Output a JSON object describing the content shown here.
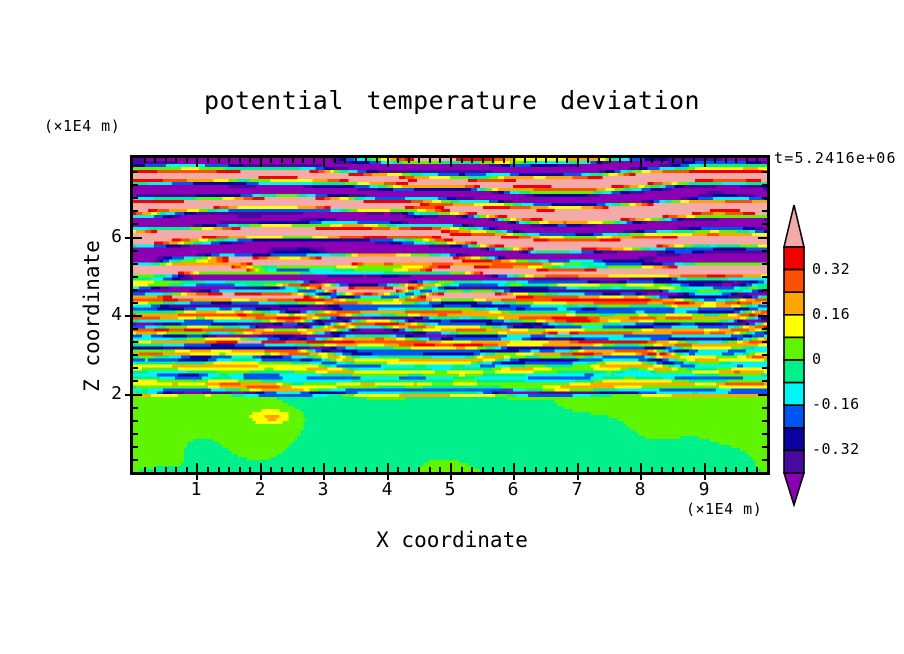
{
  "chart": {
    "title": "potential temperature deviation",
    "timestamp": "t=5.2416e+06"
  },
  "axes": {
    "x": {
      "title": "X coordinate",
      "unit": "(×1E4 m)",
      "min": 0,
      "max": 10,
      "major_ticks": [
        1,
        2,
        3,
        4,
        5,
        6,
        7,
        8,
        9
      ],
      "minor_divisions_per_unit": 6
    },
    "z": {
      "title": "Z coordinate",
      "unit": "(×1E4 m)",
      "min": 0,
      "max": 8,
      "major_ticks": [
        2,
        4,
        6
      ],
      "minor_step": 0.3333
    }
  },
  "colorbar": {
    "min": -0.4,
    "max": 0.4,
    "step": 0.08,
    "tick_labels": [
      {
        "value": 0.32,
        "text": "0.32"
      },
      {
        "value": 0.16,
        "text": "0.16"
      },
      {
        "value": 0,
        "text": "0"
      },
      {
        "value": -0.16,
        "text": "-0.16"
      },
      {
        "value": -0.32,
        "text": "-0.32"
      }
    ],
    "colors_high_to_low": [
      "#F50000",
      "#FF5000",
      "#FFA500",
      "#FFFF00",
      "#5FF500",
      "#00F08C",
      "#00F5F5",
      "#0055F0",
      "#0D00A0",
      "#4B08A0"
    ],
    "over_color": "#F5AAAA",
    "under_color": "#8C00B4"
  },
  "chart_data": {
    "type": "filled_contour",
    "title": "potential temperature deviation",
    "xlabel": "X coordinate (×1E4 m)",
    "ylabel": "Z coordinate (×1E4 m)",
    "time_label": "t=5.2416e+06",
    "x_range": [
      0,
      10
    ],
    "z_range": [
      0,
      8
    ],
    "contour_interval": 0.08,
    "levels": [
      -0.4,
      -0.32,
      -0.24,
      -0.16,
      -0.08,
      0,
      0.08,
      0.16,
      0.24,
      0.32,
      0.4
    ],
    "saturation_colors": {
      "above_0.4": "#F5AAAA",
      "below_-0.4": "#8C00B4"
    },
    "field_structure": [
      {
        "z_range": [
          0,
          1.9
        ],
        "description": "smooth weak anomalies near zero; broad interlocking blobs alternating between -0.08..0 and 0..0.08",
        "dominant_colors": [
          "#00F08C",
          "#5FF500"
        ],
        "feature": "small warm spot (~+0.2, yellow/orange) near x=2.2, z=1.4"
      },
      {
        "z_range": [
          1.9,
          2.2
        ],
        "description": "thin intense shear layer of fine streaks reaching ±0.3 (red/navy filaments)"
      },
      {
        "z_range": [
          2.2,
          5.2
        ],
        "description": "fine horizontal wave streaks (~0.35 unit vertical wavelength), amplitude growing with height through full rainbow range, occasional saturated pink/purple lenses"
      },
      {
        "z_range": [
          5.2,
          8
        ],
        "description": "broad wavy bands saturated beyond ±0.4 (pink positive / purple-indigo negative) with sharp multicolor edges"
      }
    ],
    "field_model": {
      "bottom_noise": {
        "amp": 0.085,
        "sx": 0.5,
        "sz": 0.55
      },
      "hotspot": {
        "x": 2.2,
        "z": 1.4,
        "amp": 0.17,
        "sx": 0.1,
        "sz": 0.04
      },
      "shear_layer": {
        "z": 2.0,
        "amp": 0.26,
        "width": 0.09
      },
      "mid_streaks": {
        "base_amp": 0.16,
        "growth_amp": 0.2,
        "cycles_per_unit": 2.8,
        "onset_z": [
          1.88,
          2.03
        ],
        "growth_z": [
          2.5,
          3.4
        ],
        "fade_z": [
          5.1,
          6.0
        ],
        "fade_frac": 0.62
      },
      "fine_grain": {
        "amp": 0.1,
        "sx": 2.6,
        "sz": 5.5
      },
      "upper_bands": {
        "amp": 0.64,
        "cycles_per_unit": 1.3,
        "phase": 0.55,
        "onset_z": [
          4.0,
          5.5
        ]
      }
    }
  }
}
